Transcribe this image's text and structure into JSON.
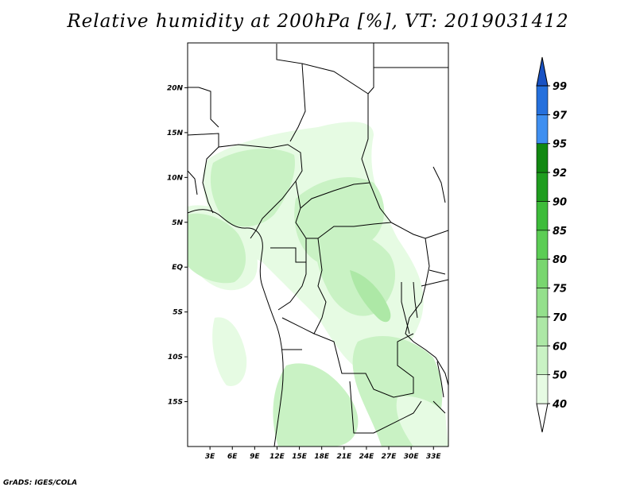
{
  "title": "Relative humidity at 200hPa [%], VT: 2019031412",
  "credit": "GrADS: IGES/COLA",
  "map": {
    "lon_range": [
      0,
      35
    ],
    "lat_range": [
      -20,
      25
    ],
    "lat_ticks": [
      {
        "lat": 20,
        "label": "20N"
      },
      {
        "lat": 15,
        "label": "15N"
      },
      {
        "lat": 10,
        "label": "10N"
      },
      {
        "lat": 5,
        "label": "5N"
      },
      {
        "lat": 0,
        "label": "EQ"
      },
      {
        "lat": -5,
        "label": "5S"
      },
      {
        "lat": -10,
        "label": "10S"
      },
      {
        "lat": -15,
        "label": "15S"
      }
    ],
    "lon_ticks": [
      {
        "lon": 3,
        "label": "3E"
      },
      {
        "lon": 6,
        "label": "6E"
      },
      {
        "lon": 9,
        "label": "9E"
      },
      {
        "lon": 12,
        "label": "12E"
      },
      {
        "lon": 15,
        "label": "15E"
      },
      {
        "lon": 18,
        "label": "18E"
      },
      {
        "lon": 21,
        "label": "21E"
      },
      {
        "lon": 24,
        "label": "24E"
      },
      {
        "lon": 27,
        "label": "27E"
      },
      {
        "lon": 30,
        "label": "30E"
      },
      {
        "lon": 33,
        "label": "33E"
      }
    ]
  },
  "colorbar": {
    "levels": [
      "40",
      "50",
      "60",
      "70",
      "75",
      "80",
      "85",
      "90",
      "92",
      "95",
      "97",
      "99"
    ],
    "colors": [
      "#e6fbe3",
      "#c9f2c4",
      "#ade8a6",
      "#94e08c",
      "#79d66f",
      "#5ccd55",
      "#3dbc3a",
      "#1f9d1f",
      "#118811",
      "#3f8ff0",
      "#2570dd",
      "#1852c4"
    ],
    "lower_color": "#ffffff",
    "upper_color": "#1852c4"
  },
  "humidity_colors": {
    "pale": "#e6fbe3",
    "light": "#c9f2c4",
    "medium": "#ade8a6"
  }
}
